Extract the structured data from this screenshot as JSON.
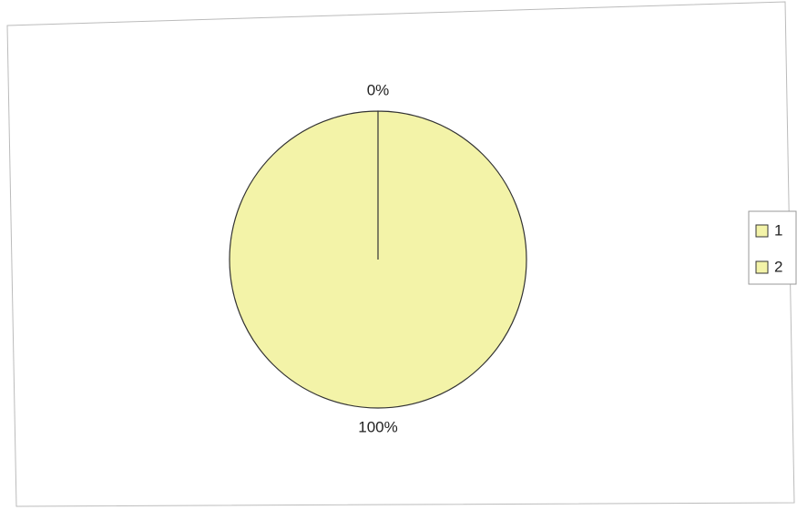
{
  "chart_data": {
    "type": "pie",
    "categories": [
      "1",
      "2"
    ],
    "values": [
      0,
      100
    ],
    "value_labels": [
      "0%",
      "100%"
    ],
    "colors": [
      "#f3f3a8",
      "#f3f3a8"
    ],
    "legend": "right"
  }
}
